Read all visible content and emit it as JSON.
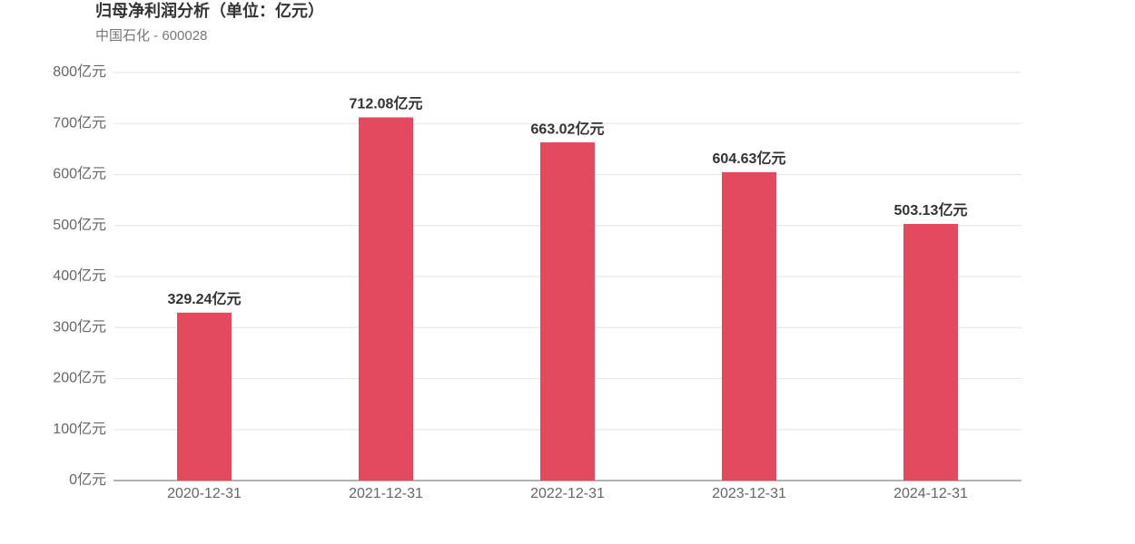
{
  "chart_data": {
    "type": "bar",
    "title": "归母净利润分析（单位：亿元）",
    "subtitle": "中国石化 - 600028",
    "categories": [
      "2020-12-31",
      "2021-12-31",
      "2022-12-31",
      "2023-12-31",
      "2024-12-31"
    ],
    "values": [
      329.24,
      712.08,
      663.02,
      604.63,
      503.13
    ],
    "value_labels": [
      "329.24亿元",
      "712.08亿元",
      "663.02亿元",
      "604.63亿元",
      "503.13亿元"
    ],
    "color": "#e34a5f",
    "ylim": [
      0,
      800
    ],
    "yticks": [
      {
        "value": 0,
        "label": "0亿元"
      },
      {
        "value": 100,
        "label": "100亿元"
      },
      {
        "value": 200,
        "label": "200亿元"
      },
      {
        "value": 300,
        "label": "300亿元"
      },
      {
        "value": 400,
        "label": "400亿元"
      },
      {
        "value": 500,
        "label": "500亿元"
      },
      {
        "value": 600,
        "label": "600亿元"
      },
      {
        "value": 700,
        "label": "700亿元"
      },
      {
        "value": 800,
        "label": "800亿元"
      }
    ],
    "grid": true
  }
}
